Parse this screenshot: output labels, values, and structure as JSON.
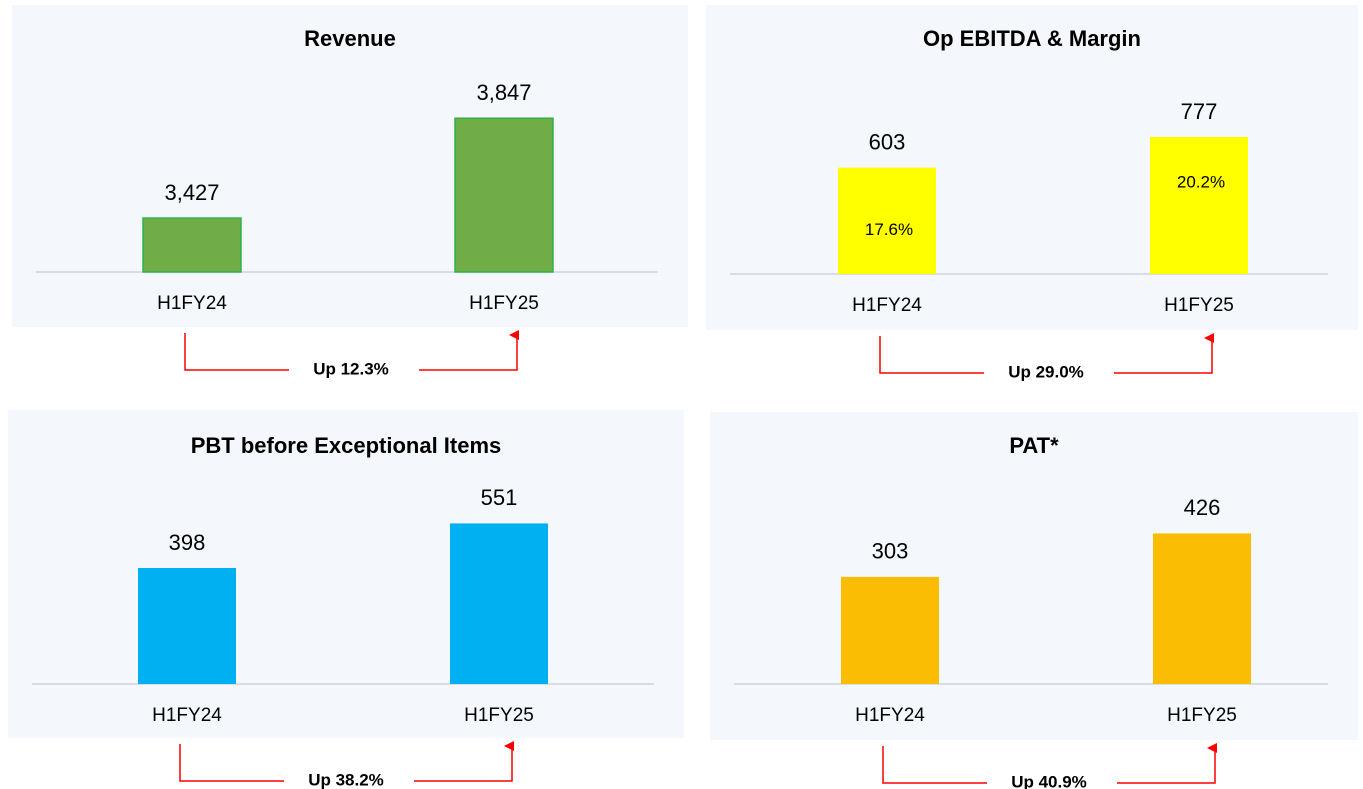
{
  "chart_data": [
    {
      "type": "bar",
      "title": "Revenue",
      "categories": [
        "H1FY24",
        "H1FY25"
      ],
      "values": [
        3427,
        3847
      ],
      "value_labels": [
        "3,427",
        "3,847"
      ],
      "color": "#70ad47",
      "ylim": [
        3200,
        4050
      ],
      "annotation": "Up 12.3%"
    },
    {
      "type": "bar",
      "title": "Op EBITDA & Margin",
      "categories": [
        "H1FY24",
        "H1FY25"
      ],
      "values": [
        603,
        777
      ],
      "color": "#ffff00",
      "ylim": [
        0,
        1100
      ],
      "margin_labels": [
        "17.6%",
        "20.2%"
      ],
      "annotation": "Up 29.0%"
    },
    {
      "type": "bar",
      "title": "PBT before Exceptional Items",
      "categories": [
        "H1FY24",
        "H1FY25"
      ],
      "values": [
        398,
        551
      ],
      "color": "#00b0f0",
      "ylim": [
        0,
        700
      ],
      "annotation": "Up 38.2%"
    },
    {
      "type": "bar",
      "title": "PAT*",
      "categories": [
        "H1FY24",
        "H1FY25"
      ],
      "values": [
        303,
        426
      ],
      "color": "#fbbc04",
      "ylim": [
        0,
        580
      ],
      "annotation": "Up 40.9%"
    }
  ]
}
